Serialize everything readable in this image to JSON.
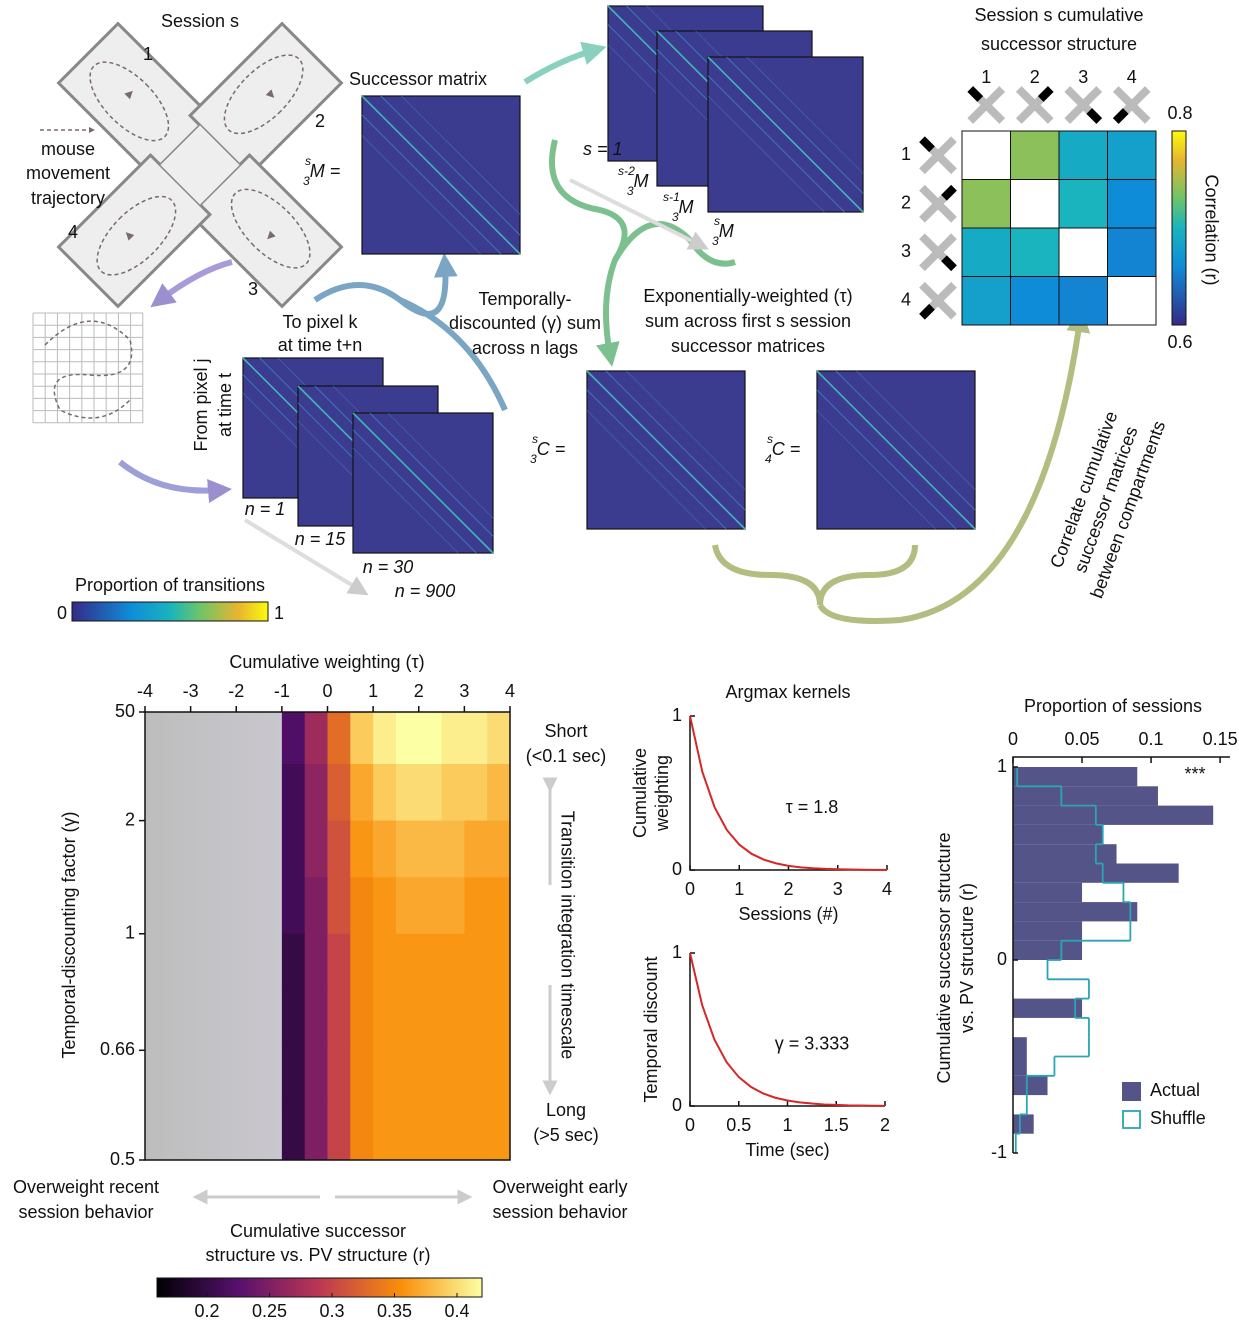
{
  "diagram": {
    "session_title": "Session s",
    "arm_labels": [
      "1",
      "2",
      "3",
      "4"
    ],
    "trajectory_label": [
      "mouse",
      "movement",
      "trajectory"
    ],
    "successor_label": "Successor matrix",
    "m_eq": {
      "sup": "s",
      "sub": "3",
      "main": "M ="
    },
    "stack_first": "s = 1",
    "stack_labels": [
      {
        "sup": "s-2",
        "sub": "3",
        "main": "M"
      },
      {
        "sup": "s-1",
        "sub": "3",
        "main": "M"
      },
      {
        "sup": "s",
        "sub": "3",
        "main": "M"
      }
    ],
    "to_pixel": [
      "To pixel k",
      "at time t+n"
    ],
    "from_pixel": [
      "From pixel j",
      "at time t"
    ],
    "lag_labels": [
      "n = 1",
      "n = 15",
      "n = 30",
      "n = 900"
    ],
    "transitions_colorbar": {
      "label": "Proportion of transitions",
      "ticks": [
        0,
        1
      ]
    },
    "temporal_text": [
      "Temporally-",
      "discounted (γ) sum",
      "across n lags"
    ],
    "exponential_text": [
      "Exponentially-weighted (τ)",
      "sum across first s session",
      "successor matrices"
    ],
    "c_labels": [
      {
        "sup": "s",
        "sub": "3",
        "main": "C ="
      },
      {
        "sup": "s",
        "sub": "4",
        "main": "C ="
      }
    ],
    "correlate_text": [
      "Correlate cumulative",
      "successor matrices",
      "between compartments"
    ]
  },
  "chart_data": [
    {
      "type": "matrix",
      "title": [
        "Session s cumulative",
        "successor structure"
      ],
      "categories": [
        "1",
        "2",
        "3",
        "4"
      ],
      "values": [
        [
          null,
          0.74,
          0.69,
          0.68
        ],
        [
          0.74,
          null,
          0.7,
          0.66
        ],
        [
          0.69,
          0.7,
          null,
          0.655
        ],
        [
          0.68,
          0.66,
          0.655,
          null
        ]
      ],
      "clim": [
        0.6,
        0.8
      ],
      "cticks": [
        0.6,
        0.8
      ],
      "colorbar_label": "Correlation (r)",
      "colormap": "parula"
    },
    {
      "type": "heatmap",
      "x_label": "Cumulative weighting (τ)",
      "y_label": "Temporal-discounting factor (γ)",
      "x": [
        -3.75,
        -3.25,
        -2.75,
        -2.25,
        -1.75,
        -1.25,
        -0.75,
        -0.25,
        0.25,
        0.75,
        1.25,
        1.75,
        2.25,
        2.75,
        3.25,
        3.75
      ],
      "y": [
        8,
        2.667,
        1.6,
        1.143,
        0.889,
        0.727,
        0.615,
        0.533
      ],
      "values": [
        [
          null,
          null,
          null,
          null,
          null,
          null,
          0.22,
          0.27,
          0.33,
          0.39,
          0.41,
          0.42,
          0.42,
          0.41,
          0.41,
          0.4
        ],
        [
          null,
          null,
          null,
          null,
          null,
          null,
          0.21,
          0.26,
          0.32,
          0.37,
          0.39,
          0.4,
          0.4,
          0.39,
          0.39,
          0.38
        ],
        [
          null,
          null,
          null,
          null,
          null,
          null,
          0.21,
          0.26,
          0.31,
          0.36,
          0.37,
          0.38,
          0.38,
          0.38,
          0.37,
          0.37
        ],
        [
          null,
          null,
          null,
          null,
          null,
          null,
          0.21,
          0.25,
          0.31,
          0.35,
          0.36,
          0.37,
          0.37,
          0.37,
          0.36,
          0.36
        ],
        [
          null,
          null,
          null,
          null,
          null,
          null,
          0.2,
          0.25,
          0.3,
          0.35,
          0.36,
          0.36,
          0.36,
          0.36,
          0.36,
          0.36
        ],
        [
          null,
          null,
          null,
          null,
          null,
          null,
          0.2,
          0.25,
          0.3,
          0.35,
          0.36,
          0.36,
          0.36,
          0.36,
          0.36,
          0.36
        ],
        [
          null,
          null,
          null,
          null,
          null,
          null,
          0.2,
          0.25,
          0.3,
          0.35,
          0.36,
          0.36,
          0.36,
          0.36,
          0.36,
          0.36
        ],
        [
          null,
          null,
          null,
          null,
          null,
          null,
          0.2,
          0.25,
          0.3,
          0.35,
          0.36,
          0.36,
          0.36,
          0.36,
          0.36,
          0.36
        ]
      ],
      "xlim": [
        -4,
        4
      ],
      "ylim": [
        0.5,
        50
      ],
      "yscale": "reciprocal",
      "xticks": [
        -4,
        -3,
        -2,
        -1,
        0,
        1,
        2,
        3,
        4
      ],
      "yticks": [
        50,
        2,
        1,
        0.66,
        0.5
      ],
      "clim": [
        0.16,
        0.42
      ],
      "cticks": [
        0.2,
        0.25,
        0.3,
        0.35,
        0.4
      ],
      "colorbar_label": [
        "Cumulative successor",
        "structure vs. PV structure (r)"
      ],
      "colormap": "inferno",
      "annotations": [
        "Short",
        "(<0.1 sec)",
        "Transition integration timescale",
        "Long",
        "(>5 sec)",
        "Overweight recent",
        "session behavior",
        "Overweight early",
        "session behavior"
      ]
    },
    {
      "type": "line",
      "title": "Argmax kernels",
      "y_label": [
        "Cumulative",
        "weighting"
      ],
      "x_label": "Sessions (#)",
      "annotation": "τ = 1.8",
      "x": [
        0,
        0.25,
        0.5,
        0.75,
        1,
        1.25,
        1.5,
        1.75,
        2,
        2.25,
        2.5,
        2.75,
        3,
        3.25,
        3.5,
        3.75,
        4
      ],
      "values": [
        1,
        0.638,
        0.407,
        0.259,
        0.165,
        0.105,
        0.067,
        0.043,
        0.027,
        0.017,
        0.011,
        0.007,
        0.005,
        0.003,
        0.002,
        0.001,
        0.001
      ],
      "xlim": [
        0,
        4
      ],
      "ylim": [
        0,
        1
      ],
      "xticks": [
        0,
        1,
        2,
        3,
        4
      ],
      "yticks": [
        0,
        1
      ],
      "color": "#d62728"
    },
    {
      "type": "line",
      "y_label": [
        "Temporal discount"
      ],
      "x_label": "Time (sec)",
      "annotation": "γ = 3.333",
      "x": [
        0,
        0.125,
        0.25,
        0.375,
        0.5,
        0.625,
        0.75,
        0.875,
        1,
        1.125,
        1.25,
        1.375,
        1.5,
        1.625,
        1.75,
        1.875,
        2
      ],
      "values": [
        1,
        0.659,
        0.435,
        0.287,
        0.189,
        0.125,
        0.082,
        0.054,
        0.036,
        0.024,
        0.016,
        0.01,
        0.007,
        0.004,
        0.003,
        0.002,
        0.001
      ],
      "xlim": [
        0,
        2
      ],
      "ylim": [
        0,
        1
      ],
      "xticks": [
        0,
        0.5,
        1,
        1.5,
        2
      ],
      "yticks": [
        0,
        1
      ],
      "color": "#d62728"
    },
    {
      "type": "histogram",
      "orientation": "horizontal",
      "title": "Proportion of sessions",
      "y_label": [
        "Cumulative successor structure",
        "vs. PV structure (r)"
      ],
      "annotation": "***",
      "bins": [
        -1,
        -0.9,
        -0.8,
        -0.7,
        -0.6,
        -0.5,
        -0.4,
        -0.3,
        -0.2,
        -0.1,
        0,
        0.1,
        0.2,
        0.3,
        0.4,
        0.5,
        0.6,
        0.7,
        0.8,
        0.9,
        1
      ],
      "series": [
        {
          "name": "Actual",
          "color": "#545489",
          "style": "filled",
          "values": [
            0,
            0.015,
            0,
            0.025,
            0.01,
            0.01,
            0,
            0.05,
            0,
            0,
            0.05,
            0.05,
            0.09,
            0.05,
            0.12,
            0.075,
            0.065,
            0.145,
            0.105,
            0.09
          ]
        },
        {
          "name": "Shuffle",
          "color": "#2aa5b5",
          "style": "step",
          "values": [
            0.002,
            0.005,
            0.01,
            0.01,
            0.03,
            0.055,
            0.055,
            0.045,
            0.055,
            0.025,
            0.035,
            0.085,
            0.085,
            0.08,
            0.065,
            0.06,
            0.065,
            0.06,
            0.035,
            0.003
          ]
        }
      ],
      "xlim": [
        0,
        0.155
      ],
      "ylim": [
        -1,
        1
      ],
      "xticks": [
        0,
        0.05,
        0.1,
        0.15
      ],
      "yticks": [
        -1,
        0,
        1
      ]
    }
  ]
}
